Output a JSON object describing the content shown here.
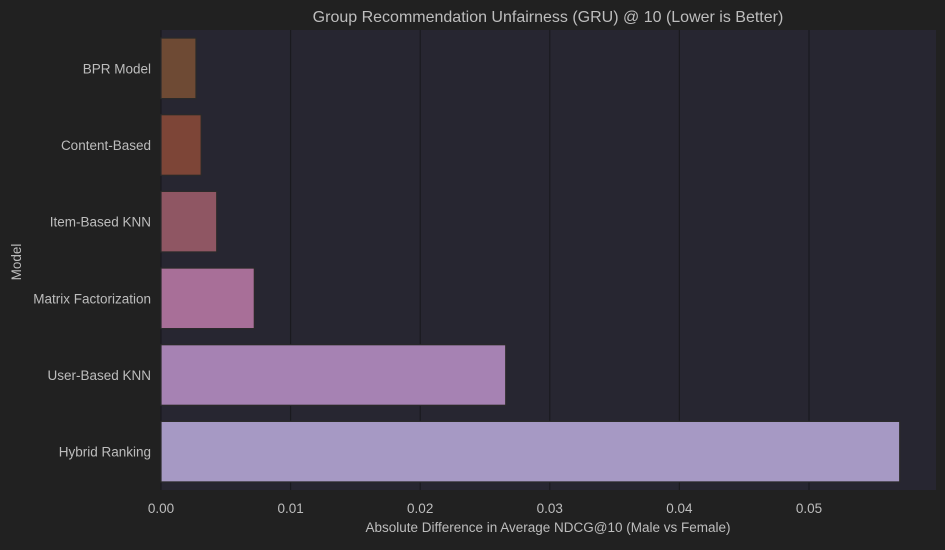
{
  "chart_data": {
    "type": "bar",
    "orientation": "horizontal",
    "title": "Group Recommendation Unfairness (GRU) @ 10 (Lower is Better)",
    "xlabel": "Absolute Difference in Average NDCG@10 (Male vs Female)",
    "ylabel": "Model",
    "categories": [
      "BPR Model",
      "Content-Based",
      "Item-Based KNN",
      "Matrix Factorization",
      "User-Based KNN",
      "Hybrid Ranking"
    ],
    "values": [
      0.0027,
      0.0031,
      0.0043,
      0.0072,
      0.0266,
      0.057
    ],
    "colors": [
      "#6e4a34",
      "#7d4537",
      "#8f5663",
      "#a86f98",
      "#a682b3",
      "#a699c4"
    ],
    "xlim": [
      0,
      0.0598
    ],
    "xticks": [
      0.0,
      0.01,
      0.02,
      0.03,
      0.04,
      0.05
    ],
    "xtick_labels": [
      "0.00",
      "0.01",
      "0.02",
      "0.03",
      "0.04",
      "0.05"
    ],
    "grid": "vertical",
    "plot_background": "#272631",
    "figure_background": "#212121"
  }
}
